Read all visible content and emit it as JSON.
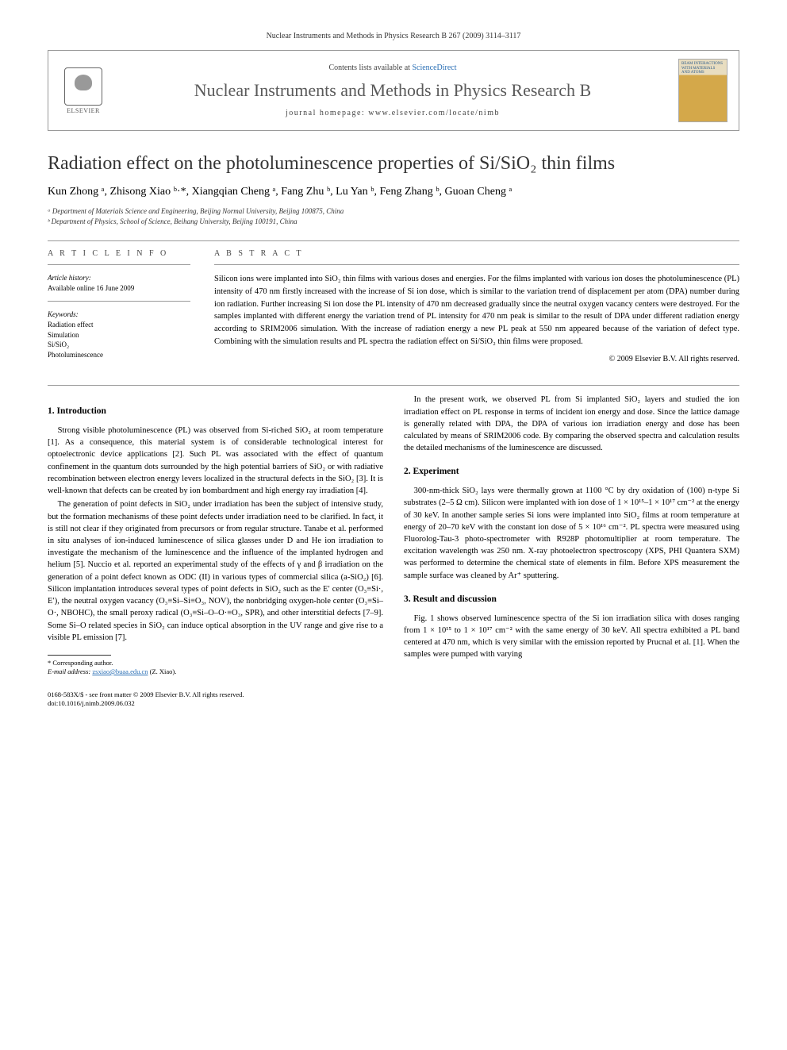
{
  "page_header": "Nuclear Instruments and Methods in Physics Research B 267 (2009) 3114–3117",
  "publisher_name": "ELSEVIER",
  "contents_prefix": "Contents lists available at ",
  "contents_link": "ScienceDirect",
  "journal_name": "Nuclear Instruments and Methods in Physics Research B",
  "homepage_label": "journal homepage: www.elsevier.com/locate/nimb",
  "cover_text": "BEAM INTERACTIONS WITH MATERIALS AND ATOMS",
  "article_title": "Radiation effect on the photoluminescence properties of Si/SiO₂ thin films",
  "authors_html": "Kun Zhong ᵃ, Zhisong Xiao ᵇ·*, Xiangqian Cheng ᵃ, Fang Zhu ᵇ, Lu Yan ᵇ, Feng Zhang ᵇ, Guoan Cheng ᵃ",
  "affiliations": [
    "ᵃ Department of Materials Science and Engineering, Beijing Normal University, Beijing 100875, China",
    "ᵇ Department of Physics, School of Science, Beihang University, Beijing 100191, China"
  ],
  "article_info_label": "A R T I C L E   I N F O",
  "abstract_label": "A B S T R A C T",
  "history_label": "Article history:",
  "history_text": "Available online 16 June 2009",
  "keywords_label": "Keywords:",
  "keywords": [
    "Radiation effect",
    "Simulation",
    "Si/SiO₂",
    "Photoluminescence"
  ],
  "abstract_text": "Silicon ions were implanted into SiO₂ thin films with various doses and energies. For the films implanted with various ion doses the photoluminescence (PL) intensity of 470 nm firstly increased with the increase of Si ion dose, which is similar to the variation trend of displacement per atom (DPA) number during ion radiation. Further increasing Si ion dose the PL intensity of 470 nm decreased gradually since the neutral oxygen vacancy centers were destroyed. For the samples implanted with different energy the variation trend of PL intensity for 470 nm peak is similar to the result of DPA under different radiation energy according to SRIM2006 simulation. With the increase of radiation energy a new PL peak at 550 nm appeared because of the variation of defect type. Combining with the simulation results and PL spectra the radiation effect on Si/SiO₂ thin films were proposed.",
  "copyright": "© 2009 Elsevier B.V. All rights reserved.",
  "sections": {
    "s1_title": "1. Introduction",
    "s1_p1": "Strong visible photoluminescence (PL) was observed from Si-riched SiO₂ at room temperature [1]. As a consequence, this material system is of considerable technological interest for optoelectronic device applications [2]. Such PL was associated with the effect of quantum confinement in the quantum dots surrounded by the high potential barriers of SiO₂ or with radiative recombination between electron energy levers localized in the structural defects in the SiO₂ [3]. It is well-known that defects can be created by ion bombardment and high energy ray irradiation [4].",
    "s1_p2": "The generation of point defects in SiO₂ under irradiation has been the subject of intensive study, but the formation mechanisms of these point defects under irradiation need to be clarified. In fact, it is still not clear if they originated from precursors or from regular structure. Tanabe et al. performed in situ analyses of ion-induced luminescence of silica glasses under D and He ion irradiation to investigate the mechanism of the luminescence and the influence of the implanted hydrogen and helium [5]. Nuccio et al. reported an experimental study of the effects of γ and β irradiation on the generation of a point defect known as ODC (II) in various types of commercial silica (a-SiO₂) [6]. Silicon implantation introduces several types of point defects in SiO₂ such as the E′ center (O₃≡Si·, E′), the neutral oxygen vacancy (O₃≡Si–Si≡O₃, NOV), the nonbridging oxygen-hole center (O₃≡Si–O·, NBOHC), the small peroxy radical (O₃≡Si–O–O·≡O₃, SPR), and other interstitial defects [7–9]. Some Si–O related species in SiO₂ can induce optical absorption in the UV range and give rise to a visible PL emission [7].",
    "s1_p3": "In the present work, we observed PL from Si implanted SiO₂ layers and studied the ion irradiation effect on PL response in terms of incident ion energy and dose. Since the lattice damage is generally related with DPA, the DPA of various ion irradiation energy and dose has been calculated by means of SRIM2006 code. By comparing the observed spectra and calculation results the detailed mechanisms of the luminescence are discussed.",
    "s2_title": "2. Experiment",
    "s2_p1": "300-nm-thick SiO₂ lays were thermally grown at 1100 °C by dry oxidation of (100) n-type Si substrates (2–5 Ω cm). Silicon were implanted with ion dose of 1 × 10¹⁵–1 × 10¹⁷ cm⁻² at the energy of 30 keV. In another sample series Si ions were implanted into SiO₂ films at room temperature at energy of 20–70 keV with the constant ion dose of 5 × 10¹⁶ cm⁻². PL spectra were measured using Fluorolog-Tau-3 photo-spectrometer with R928P photomultiplier at room temperature. The excitation wavelength was 250 nm. X-ray photoelectron spectroscopy (XPS, PHI Quantera SXM) was performed to determine the chemical state of elements in film. Before XPS measurement the sample surface was cleaned by Ar⁺ sputtering.",
    "s3_title": "3. Result and discussion",
    "s3_p1": "Fig. 1 shows observed luminescence spectra of the Si ion irradiation silica with doses ranging from 1 × 10¹⁵ to 1 × 10¹⁷ cm⁻² with the same energy of 30 keV. All spectra exhibited a PL band centered at 470 nm, which is very similar with the emission reported by Prucnal et al. [1]. When the samples were pumped with varying"
  },
  "footnote_marker": "* Corresponding author.",
  "footnote_email_label": "E-mail address:",
  "footnote_email": "zsxiao@buaa.edu.cn",
  "footnote_email_name": "(Z. Xiao).",
  "footer_issn": "0168-583X/$ - see front matter © 2009 Elsevier B.V. All rights reserved.",
  "footer_doi": "doi:10.1016/j.nimb.2009.06.032"
}
